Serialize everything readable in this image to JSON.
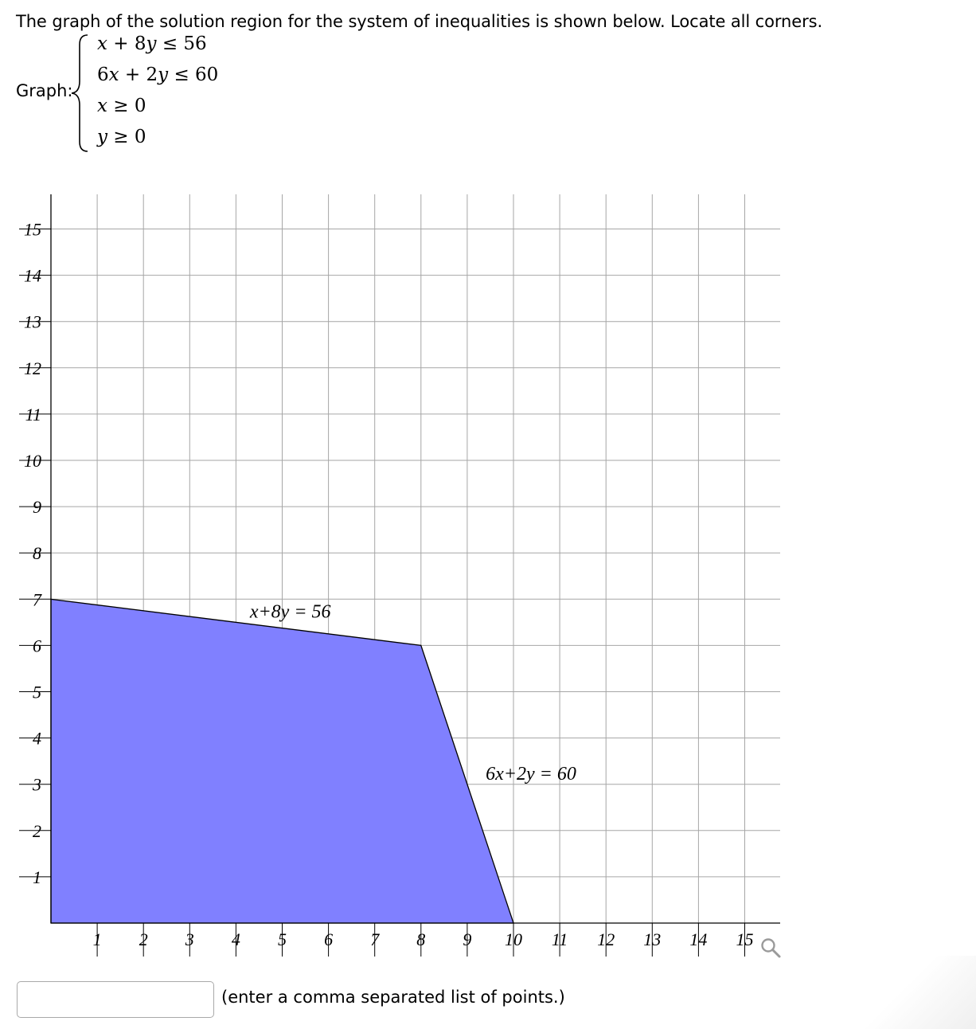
{
  "prompt": "The graph of the solution region for the system of inequalities is shown below. Locate all corners.",
  "graph_label": "Graph:",
  "system": [
    {
      "lhs_var1": "x",
      "op1": " + 8",
      "lhs_var2": "y",
      "rel": " ≤ 56"
    },
    {
      "lhs_pre": "6",
      "lhs_var1": "x",
      "op1": " + 2",
      "lhs_var2": "y",
      "rel": " ≤ 60"
    },
    {
      "lhs_var1": "x",
      "rel": " ≥ 0"
    },
    {
      "lhs_var1": "y",
      "rel": " ≥ 0"
    }
  ],
  "chart_data": {
    "type": "area",
    "x_ticks": [
      "1",
      "2",
      "3",
      "4",
      "5",
      "6",
      "7",
      "8",
      "9",
      "10",
      "11",
      "12",
      "13",
      "14",
      "15"
    ],
    "y_ticks": [
      "1",
      "2",
      "3",
      "4",
      "5",
      "6",
      "7",
      "8",
      "9",
      "10",
      "11",
      "12",
      "13",
      "14",
      "15"
    ],
    "xlim": [
      0,
      15.75
    ],
    "ylim": [
      0,
      15.75
    ],
    "grid": true,
    "region": {
      "fill": "#8080ff",
      "vertices": [
        [
          0,
          0
        ],
        [
          0,
          7
        ],
        [
          8,
          6
        ],
        [
          10,
          0
        ]
      ]
    },
    "line_labels": [
      {
        "text": "x+8y = 56",
        "x": 4.3,
        "y": 6.6
      },
      {
        "text": "6x+2y = 60",
        "x": 9.4,
        "y": 3.1
      }
    ]
  },
  "answer": {
    "value": "",
    "placeholder": "",
    "hint": "(enter a comma separated list of points.)"
  },
  "icons": {
    "zoom": "magnifier-icon"
  }
}
